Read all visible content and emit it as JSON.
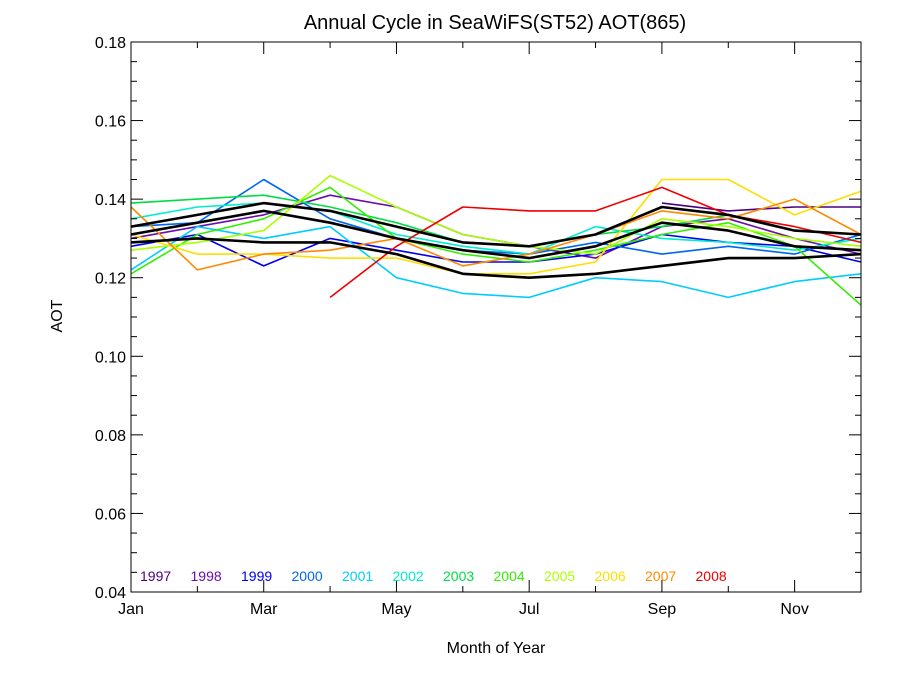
{
  "chart_data": {
    "type": "line",
    "title": "Annual Cycle in SeaWiFS(ST52) AOT(865)",
    "xlabel": "Month of Year",
    "ylabel": "AOT",
    "xlim": [
      1,
      12
    ],
    "ylim": [
      0.04,
      0.18
    ],
    "x_ticks": [
      {
        "value": 1,
        "label": "Jan"
      },
      {
        "value": 3,
        "label": "Mar"
      },
      {
        "value": 5,
        "label": "May"
      },
      {
        "value": 7,
        "label": "Jul"
      },
      {
        "value": 9,
        "label": "Sep"
      },
      {
        "value": 11,
        "label": "Nov"
      }
    ],
    "y_ticks": [
      {
        "value": 0.04,
        "label": "0.04"
      },
      {
        "value": 0.06,
        "label": "0.06"
      },
      {
        "value": 0.08,
        "label": "0.08"
      },
      {
        "value": 0.1,
        "label": "0.10"
      },
      {
        "value": 0.12,
        "label": "0.12"
      },
      {
        "value": 0.14,
        "label": "0.14"
      },
      {
        "value": 0.16,
        "label": "0.16"
      },
      {
        "value": 0.18,
        "label": "0.18"
      }
    ],
    "legend_placement": "bottom-left",
    "grid": false,
    "series": [
      {
        "name": "1997",
        "color": "#4b0082",
        "x": [
          9,
          10,
          11,
          12
        ],
        "values": [
          0.139,
          0.137,
          0.138,
          0.138
        ]
      },
      {
        "name": "1998",
        "color": "#6a0dad",
        "x": [
          1,
          2,
          3,
          4,
          5,
          6,
          7,
          8,
          9,
          10,
          11,
          12
        ],
        "values": [
          0.13,
          0.133,
          0.136,
          0.141,
          0.138,
          0.131,
          0.128,
          0.125,
          0.133,
          0.135,
          0.13,
          0.126
        ]
      },
      {
        "name": "1999",
        "color": "#0000ee",
        "x": [
          1,
          2,
          3,
          4,
          5,
          6,
          7,
          8,
          9,
          10,
          11,
          12
        ],
        "values": [
          0.128,
          0.131,
          0.123,
          0.13,
          0.127,
          0.124,
          0.124,
          0.126,
          0.131,
          0.129,
          0.128,
          0.124
        ]
      },
      {
        "name": "2000",
        "color": "#0066ee",
        "x": [
          1,
          2,
          3,
          4,
          5,
          6,
          7,
          8,
          9,
          10,
          11,
          12
        ],
        "values": [
          0.133,
          0.134,
          0.145,
          0.135,
          0.13,
          0.127,
          0.126,
          0.129,
          0.126,
          0.128,
          0.126,
          0.131
        ]
      },
      {
        "name": "2001",
        "color": "#00ccff",
        "x": [
          1,
          2,
          3,
          4,
          5,
          6,
          7,
          8,
          9,
          10,
          11,
          12
        ],
        "values": [
          0.122,
          0.133,
          0.13,
          0.133,
          0.12,
          0.116,
          0.115,
          0.12,
          0.119,
          0.115,
          0.119,
          0.121
        ]
      },
      {
        "name": "2002",
        "color": "#00eecc",
        "x": [
          1,
          2,
          3,
          4,
          5,
          6,
          7,
          8,
          9,
          10,
          11,
          12
        ],
        "values": [
          0.135,
          0.138,
          0.139,
          0.137,
          0.131,
          0.128,
          0.126,
          0.133,
          0.13,
          0.129,
          0.127,
          0.13
        ]
      },
      {
        "name": "2003",
        "color": "#00dd44",
        "x": [
          1,
          2,
          3,
          4,
          5,
          6,
          7,
          8,
          9,
          10,
          11,
          12
        ],
        "values": [
          0.139,
          0.14,
          0.141,
          0.138,
          0.134,
          0.129,
          0.128,
          0.131,
          0.133,
          0.136,
          0.132,
          0.131
        ]
      },
      {
        "name": "2004",
        "color": "#33ee00",
        "x": [
          1,
          2,
          3,
          4,
          5,
          6,
          7,
          8,
          9,
          10,
          11,
          12
        ],
        "values": [
          0.121,
          0.131,
          0.135,
          0.143,
          0.13,
          0.126,
          0.124,
          0.127,
          0.131,
          0.134,
          0.128,
          0.113
        ]
      },
      {
        "name": "2005",
        "color": "#aaff00",
        "x": [
          1,
          2,
          3,
          4,
          5,
          6,
          7,
          8,
          9,
          10,
          11,
          12
        ],
        "values": [
          0.127,
          0.129,
          0.132,
          0.146,
          0.138,
          0.131,
          0.128,
          0.126,
          0.135,
          0.133,
          0.13,
          0.128
        ]
      },
      {
        "name": "2006",
        "color": "#ffdd00",
        "x": [
          1,
          2,
          3,
          4,
          5,
          6,
          7,
          8,
          9,
          10,
          11,
          12
        ],
        "values": [
          0.131,
          0.126,
          0.126,
          0.125,
          0.125,
          0.121,
          0.121,
          0.124,
          0.145,
          0.145,
          0.136,
          0.142
        ]
      },
      {
        "name": "2007",
        "color": "#ff8800",
        "x": [
          1,
          2,
          3,
          4,
          5,
          6,
          7,
          8,
          9,
          10,
          11,
          12
        ],
        "values": [
          0.138,
          0.122,
          0.126,
          0.127,
          0.13,
          0.123,
          0.126,
          0.131,
          0.137,
          0.135,
          0.14,
          0.131
        ]
      },
      {
        "name": "2008",
        "color": "#ee0000",
        "x": [
          4,
          5,
          6,
          7,
          8,
          9,
          10,
          11,
          12
        ],
        "values": [
          0.115,
          0.128,
          0.138,
          0.137,
          0.137,
          0.143,
          0.136,
          0.133,
          0.129
        ]
      },
      {
        "name": "",
        "color": "#000000",
        "thick": true,
        "x": [
          1,
          2,
          3,
          4,
          5,
          6,
          7,
          8,
          9,
          10,
          11,
          12
        ],
        "values": [
          0.131,
          0.134,
          0.137,
          0.134,
          0.13,
          0.127,
          0.125,
          0.128,
          0.134,
          0.132,
          0.128,
          0.127
        ]
      },
      {
        "name": "",
        "color": "#000000",
        "thick": true,
        "x": [
          1,
          2,
          3,
          4,
          5,
          6,
          7,
          8,
          9,
          10,
          11,
          12
        ],
        "values": [
          0.129,
          0.13,
          0.129,
          0.129,
          0.126,
          0.121,
          0.12,
          0.121,
          0.123,
          0.125,
          0.125,
          0.126
        ]
      },
      {
        "name": "",
        "color": "#000000",
        "thick": true,
        "x": [
          1,
          2,
          3,
          4,
          5,
          6,
          7,
          8,
          9,
          10,
          11,
          12
        ],
        "values": [
          0.133,
          0.136,
          0.139,
          0.137,
          0.133,
          0.129,
          0.128,
          0.131,
          0.138,
          0.136,
          0.132,
          0.131
        ]
      }
    ]
  }
}
